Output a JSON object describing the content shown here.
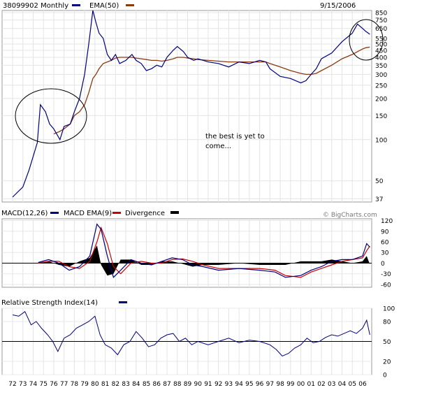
{
  "chart_data": {
    "title": "38099902 Monthly",
    "date": "9/15/2006",
    "price_panel": {
      "type": "line",
      "scale": "log",
      "legend": [
        {
          "label": "38099902 Monthly",
          "color": "#000080"
        },
        {
          "label": "EMA(50)",
          "color": "#8b3a0e"
        }
      ],
      "y_ticks": [
        850,
        750,
        650,
        550,
        500,
        450,
        400,
        350,
        300,
        250,
        200,
        150,
        100,
        50,
        37
      ],
      "ylim": [
        35,
        880
      ],
      "x": [
        1972,
        1973,
        1973.6,
        1974.4,
        1974.7,
        1975.2,
        1975.6,
        1976,
        1976.6,
        1977,
        1977.6,
        1978,
        1978.5,
        1979,
        1979.4,
        1979.8,
        1980.1,
        1980.4,
        1980.8,
        1981.2,
        1981.6,
        1982,
        1982.4,
        1983,
        1983.6,
        1984,
        1984.5,
        1985,
        1985.5,
        1986,
        1986.5,
        1987,
        1987.6,
        1988,
        1988.6,
        1989,
        1989.6,
        1990,
        1991,
        1992,
        1993,
        1994,
        1995,
        1996,
        1996.6,
        1997,
        1998,
        1999,
        2000,
        2000.5,
        2001,
        2001.5,
        2002,
        2003,
        2004,
        2005,
        2005.5,
        2006,
        2006.3,
        2006.7
      ],
      "price": [
        38,
        45,
        60,
        95,
        180,
        160,
        130,
        120,
        100,
        125,
        130,
        160,
        200,
        300,
        500,
        880,
        720,
        600,
        550,
        420,
        380,
        420,
        360,
        380,
        420,
        380,
        360,
        320,
        330,
        350,
        340,
        400,
        450,
        480,
        440,
        400,
        380,
        390,
        370,
        360,
        340,
        370,
        360,
        380,
        370,
        330,
        290,
        280,
        260,
        270,
        300,
        330,
        390,
        430,
        520,
        600,
        700,
        650,
        620,
        590
      ],
      "ema": [
        null,
        null,
        null,
        null,
        null,
        null,
        null,
        110,
        115,
        120,
        130,
        150,
        160,
        180,
        220,
        280,
        300,
        330,
        360,
        370,
        380,
        395,
        400,
        400,
        400,
        395,
        390,
        385,
        380,
        380,
        375,
        380,
        390,
        400,
        400,
        395,
        390,
        385,
        380,
        375,
        370,
        370,
        370,
        370,
        370,
        360,
        340,
        320,
        305,
        300,
        300,
        305,
        320,
        350,
        390,
        420,
        440,
        460,
        470,
        475
      ],
      "annotation": [
        "the best is yet to",
        "come..."
      ],
      "highlights": [
        "1975-1978 circle",
        "2006 circle"
      ]
    },
    "macd_panel": {
      "type": "line",
      "legend": [
        {
          "label": "MACD(12,26)",
          "color": "#000080"
        },
        {
          "label": "MACD EMA(9)",
          "color": "#cc0000"
        },
        {
          "label": "Divergence",
          "color": "#000000"
        }
      ],
      "watermark": "© BigCharts.com",
      "y_ticks": [
        120,
        90,
        60,
        30,
        0,
        -30,
        -60
      ],
      "ylim": [
        -68,
        125
      ],
      "x": [
        1974.5,
        1975.5,
        1976.5,
        1977.5,
        1978.5,
        1979.5,
        1980.2,
        1980.6,
        1981.2,
        1981.8,
        1982.5,
        1983.5,
        1984.5,
        1985.5,
        1986.5,
        1987.5,
        1988.5,
        1989.5,
        1990.5,
        1992,
        1994,
        1996,
        1997.5,
        1998.5,
        2000,
        2001,
        2002,
        2003,
        2004,
        2005,
        2006,
        2006.4,
        2006.7
      ],
      "macd": [
        2,
        10,
        0,
        -20,
        -10,
        20,
        110,
        95,
        20,
        -40,
        -20,
        10,
        0,
        -5,
        5,
        15,
        10,
        -5,
        -10,
        -20,
        -15,
        -20,
        -25,
        -40,
        -35,
        -20,
        -10,
        5,
        10,
        10,
        20,
        55,
        45
      ],
      "signal": [
        0,
        5,
        5,
        -10,
        -15,
        5,
        60,
        100,
        55,
        -10,
        -30,
        0,
        5,
        0,
        0,
        10,
        12,
        5,
        -5,
        -15,
        -15,
        -15,
        -20,
        -35,
        -40,
        -25,
        -15,
        -5,
        5,
        10,
        15,
        35,
        48
      ],
      "divergence": [
        2,
        5,
        -5,
        -10,
        5,
        15,
        50,
        -5,
        -35,
        -30,
        10,
        10,
        -5,
        -5,
        5,
        5,
        -2,
        -10,
        -5,
        -5,
        0,
        -5,
        -5,
        -5,
        5,
        5,
        5,
        10,
        5,
        0,
        5,
        20,
        -3
      ]
    },
    "rsi_panel": {
      "type": "line",
      "legend": [
        {
          "label": "Relative Strength Index(14)",
          "color": "#000080"
        }
      ],
      "y_ticks": [
        100,
        80,
        50,
        20,
        0
      ],
      "ylim": [
        0,
        100
      ],
      "midline": 50,
      "x": [
        1972,
        1972.6,
        1973.2,
        1973.8,
        1974.3,
        1974.8,
        1975.4,
        1975.9,
        1976.4,
        1977,
        1977.6,
        1978.2,
        1978.8,
        1979.4,
        1980,
        1980.5,
        1981,
        1981.6,
        1982.2,
        1982.8,
        1983.4,
        1984,
        1984.6,
        1985.2,
        1985.8,
        1986.4,
        1987,
        1987.6,
        1988.2,
        1988.8,
        1989.4,
        1990,
        1991,
        1992,
        1993,
        1994,
        1995,
        1996,
        1997,
        1997.6,
        1998.2,
        1998.8,
        1999.4,
        2000,
        2000.6,
        2001.2,
        2001.8,
        2002.4,
        2003,
        2003.6,
        2004.2,
        2004.8,
        2005.4,
        2006,
        2006.4,
        2006.7
      ],
      "rsi": [
        90,
        88,
        95,
        75,
        80,
        70,
        60,
        50,
        35,
        55,
        60,
        70,
        75,
        80,
        88,
        60,
        45,
        40,
        30,
        45,
        50,
        65,
        55,
        42,
        45,
        55,
        60,
        62,
        50,
        55,
        45,
        50,
        45,
        50,
        55,
        48,
        52,
        50,
        45,
        38,
        28,
        32,
        40,
        45,
        55,
        48,
        50,
        56,
        60,
        58,
        62,
        66,
        62,
        70,
        82,
        60
      ]
    },
    "x_axis": {
      "labels": [
        "72",
        "73",
        "74",
        "75",
        "76",
        "77",
        "78",
        "79",
        "80",
        "81",
        "82",
        "83",
        "84",
        "85",
        "86",
        "87",
        "88",
        "89",
        "90",
        "91",
        "92",
        "93",
        "94",
        "95",
        "96",
        "97",
        "98",
        "99",
        "00",
        "01",
        "02",
        "03",
        "04",
        "05",
        "06"
      ]
    }
  }
}
